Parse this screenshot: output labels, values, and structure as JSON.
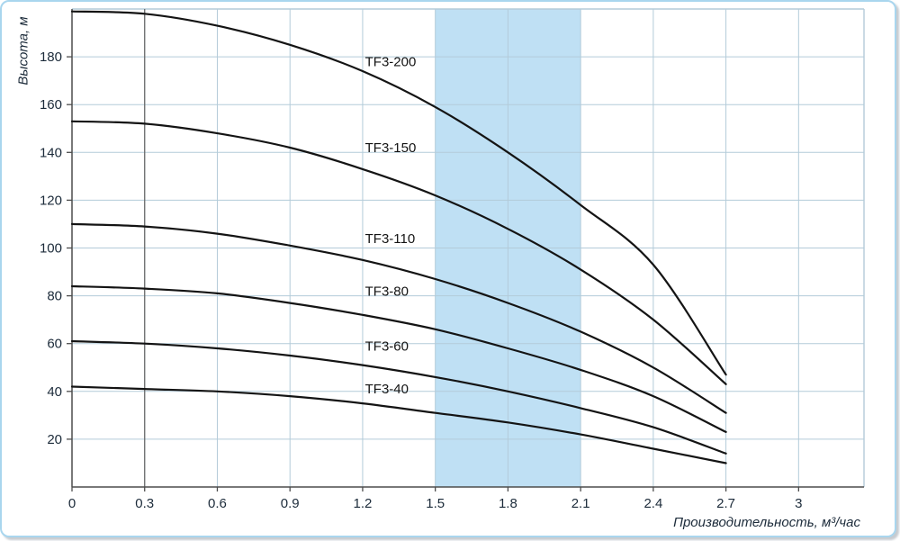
{
  "chart_data": {
    "type": "line",
    "title": "",
    "xlabel": "Производительность, м³/час",
    "ylabel": "Высота, м",
    "xlim": [
      0,
      3.27
    ],
    "ylim": [
      0,
      200
    ],
    "x_ticks": [
      0,
      0.3,
      0.6,
      0.9,
      1.2,
      1.5,
      1.8,
      2.1,
      2.4,
      2.7,
      3
    ],
    "x_tick_labels": [
      "0",
      "0.3",
      "0.6",
      "0.9",
      "1.2",
      "1.5",
      "1.8",
      "2.1",
      "2.4",
      "2.7",
      "3"
    ],
    "y_ticks": [
      20,
      40,
      60,
      80,
      100,
      120,
      140,
      160,
      180
    ],
    "y_tick_labels": [
      "20",
      "40",
      "60",
      "80",
      "100",
      "120",
      "140",
      "160",
      "180"
    ],
    "grid": true,
    "legend_position": "on-curve-labels",
    "highlight_band": {
      "from": 1.5,
      "to": 2.1
    },
    "reference_line_x": 0.3,
    "x": [
      0,
      0.3,
      0.6,
      0.9,
      1.2,
      1.5,
      1.8,
      2.1,
      2.4,
      2.7
    ],
    "series": [
      {
        "name": "TF3-200",
        "values": [
          199,
          198,
          193,
          185,
          174,
          159,
          140,
          118,
          93,
          47
        ],
        "label_x": 1.21,
        "label_y": 178
      },
      {
        "name": "TF3-150",
        "values": [
          153,
          152,
          148,
          142,
          133,
          122,
          108,
          91,
          70,
          43
        ],
        "label_x": 1.21,
        "label_y": 142
      },
      {
        "name": "TF3-110",
        "values": [
          110,
          109,
          106,
          101,
          95,
          87,
          77,
          65,
          50,
          31
        ],
        "label_x": 1.21,
        "label_y": 104
      },
      {
        "name": "TF3-80",
        "values": [
          84,
          83,
          81,
          77,
          72,
          66,
          58,
          49,
          38,
          23
        ],
        "label_x": 1.21,
        "label_y": 82
      },
      {
        "name": "TF3-60",
        "values": [
          61,
          60,
          58,
          55,
          51,
          46,
          40,
          33,
          25,
          14
        ],
        "label_x": 1.21,
        "label_y": 59
      },
      {
        "name": "TF3-40",
        "values": [
          42,
          41,
          40,
          38,
          35,
          31,
          27,
          22,
          16,
          10
        ],
        "label_x": 1.21,
        "label_y": 41
      }
    ],
    "colors": {
      "curve": "#141414",
      "grid": "#b3cbd9",
      "axis": "#4d4d4d",
      "band": "#bfe0f4",
      "text": "#1c2b3a",
      "border": "#a9d6ee",
      "ref_line": "#6b6b6b"
    }
  }
}
